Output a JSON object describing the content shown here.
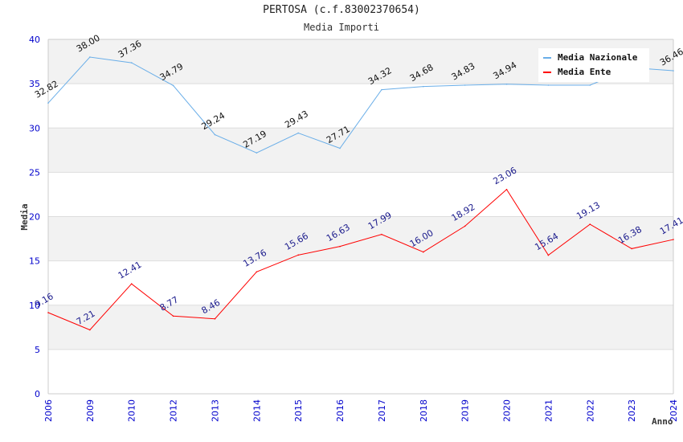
{
  "chart_data": {
    "type": "line",
    "title": "PERTOSA (c.f.83002370654)",
    "subtitle": "Media Importi",
    "xlabel": "Anno",
    "ylabel": "Media",
    "ylim": [
      0,
      40
    ],
    "yticks": [
      "0",
      "5",
      "10",
      "15",
      "20",
      "25",
      "30",
      "35",
      "40"
    ],
    "categories": [
      "2006",
      "2009",
      "2010",
      "2012",
      "2013",
      "2014",
      "2015",
      "2016",
      "2017",
      "2018",
      "2019",
      "2020",
      "2021",
      "2022",
      "2023",
      "2024"
    ],
    "grid": true,
    "legend_position": "top-right",
    "series": [
      {
        "name": "Media Nazionale",
        "color": "#6aaee8",
        "label_color": "#111111",
        "values": [
          32.82,
          38.0,
          37.36,
          34.79,
          29.24,
          27.19,
          29.43,
          27.71,
          34.32,
          34.68,
          34.83,
          34.94,
          34.83,
          34.83,
          36.8,
          36.46
        ],
        "labels": [
          "32.82",
          "38.00",
          "37.36",
          "34.79",
          "29.24",
          "27.19",
          "29.43",
          "27.71",
          "34.32",
          "34.68",
          "34.83",
          "34.94",
          null,
          null,
          null,
          "36.46"
        ]
      },
      {
        "name": "Media Ente",
        "color": "#ff0000",
        "label_color": "#1a1a8c",
        "values": [
          9.16,
          7.21,
          12.41,
          8.77,
          8.46,
          13.76,
          15.66,
          16.63,
          17.99,
          16.0,
          18.92,
          23.06,
          15.64,
          19.13,
          16.38,
          17.41
        ],
        "labels": [
          "9.16",
          "7.21",
          "12.41",
          "8.77",
          "8.46",
          "13.76",
          "15.66",
          "16.63",
          "17.99",
          "16.00",
          "18.92",
          "23.06",
          "15.64",
          "19.13",
          "16.38",
          "17.41"
        ]
      }
    ]
  }
}
